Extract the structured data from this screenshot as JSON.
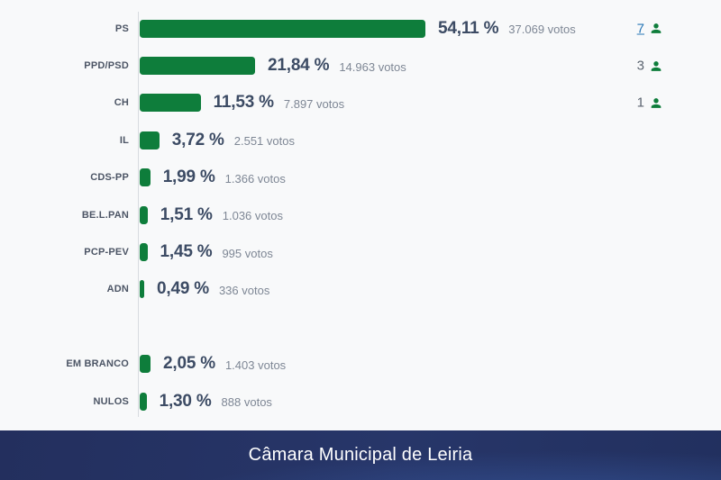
{
  "chart_data": {
    "type": "bar",
    "orientation": "horizontal",
    "title": "Câmara Municipal de Leiria",
    "xlabel": "",
    "ylabel": "",
    "value_unit": "%",
    "xlim": [
      0,
      60
    ],
    "grid": false,
    "legend": false,
    "bar_color": "#0e7d3b",
    "rows": [
      {
        "label": "PS",
        "pct": 54.11,
        "pct_label": "54,11 %",
        "votes": 37069,
        "votes_label": "37.069 votos",
        "seats": "7",
        "seats_link": true
      },
      {
        "label": "PPD/PSD",
        "pct": 21.84,
        "pct_label": "21,84 %",
        "votes": 14963,
        "votes_label": "14.963 votos",
        "seats": "3",
        "seats_link": false
      },
      {
        "label": "CH",
        "pct": 11.53,
        "pct_label": "11,53 %",
        "votes": 7897,
        "votes_label": "7.897 votos",
        "seats": "1",
        "seats_link": false
      },
      {
        "label": "IL",
        "pct": 3.72,
        "pct_label": "3,72 %",
        "votes": 2551,
        "votes_label": "2.551 votos",
        "seats": null,
        "seats_link": false
      },
      {
        "label": "CDS-PP",
        "pct": 1.99,
        "pct_label": "1,99 %",
        "votes": 1366,
        "votes_label": "1.366 votos",
        "seats": null,
        "seats_link": false
      },
      {
        "label": "BE.L.PAN",
        "pct": 1.51,
        "pct_label": "1,51 %",
        "votes": 1036,
        "votes_label": "1.036 votos",
        "seats": null,
        "seats_link": false
      },
      {
        "label": "PCP-PEV",
        "pct": 1.45,
        "pct_label": "1,45 %",
        "votes": 995,
        "votes_label": "995 votos",
        "seats": null,
        "seats_link": false
      },
      {
        "label": "ADN",
        "pct": 0.49,
        "pct_label": "0,49 %",
        "votes": 336,
        "votes_label": "336 votos",
        "seats": null,
        "seats_link": false
      }
    ],
    "ballot_rows": [
      {
        "label": "EM BRANCO",
        "pct": 2.05,
        "pct_label": "2,05 %",
        "votes": 1403,
        "votes_label": "1.403 votos",
        "seats": null,
        "seats_link": false
      },
      {
        "label": "NULOS",
        "pct": 1.3,
        "pct_label": "1,30 %",
        "votes": 888,
        "votes_label": "888 votos",
        "seats": null,
        "seats_link": false
      }
    ]
  },
  "footer": {
    "title": "Câmara Municipal de Leiria"
  },
  "colors": {
    "background": "#f8f9fa",
    "bar": "#0e7d3b",
    "axis_line": "#d8dbe0",
    "party_label_text": "#4c5565",
    "percent_text": "#3c4b64",
    "votes_text": "#7e8795",
    "seat_count_text": "#5b6470",
    "seat_count_link": "#2877b6",
    "person_icon": "#0e7d3b",
    "footer_background": "#243063",
    "footer_highlight": "#2d4a8e",
    "footer_text": "#ffffff"
  }
}
